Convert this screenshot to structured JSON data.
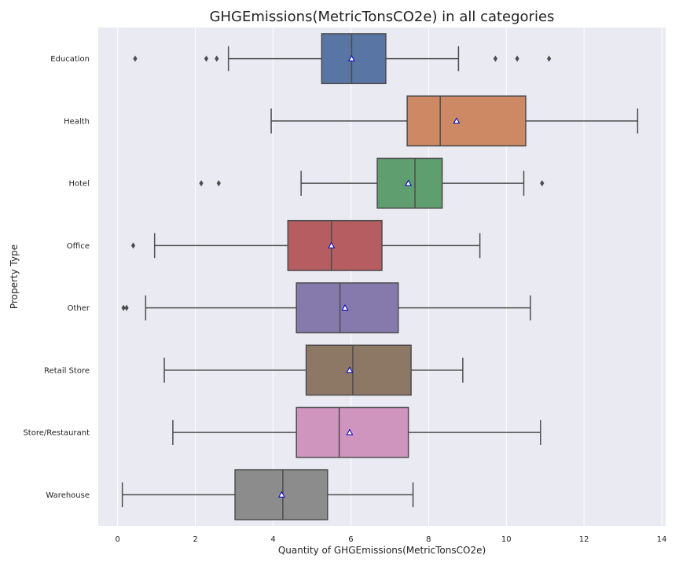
{
  "chart_data": {
    "type": "boxplot",
    "orientation": "horizontal",
    "title": "GHGEmissions(MetricTonsCO2e) in all categories",
    "xlabel": "Quantity of GHGEmissions(MetricTonsCO2e)",
    "ylabel": "Property Type",
    "xlim": [
      -0.5,
      14.1
    ],
    "xticks": [
      0,
      2,
      4,
      6,
      8,
      10,
      12,
      14
    ],
    "grid": true,
    "show_means": true,
    "colors": {
      "background": "#eaeaf2",
      "grid": "#ffffff",
      "line": "#4d4d4d",
      "mean_marker_fill": "#ffffff",
      "mean_marker_edge": "#0000cc"
    },
    "categories": [
      "Education",
      "Health",
      "Hotel",
      "Office",
      "Other",
      "Retail Store",
      "Store/Restaurant",
      "Warehouse"
    ],
    "boxes": [
      {
        "category": "Education",
        "color": "#5875a4",
        "whisker_low": 2.85,
        "q1": 5.25,
        "median": 6.02,
        "q3": 6.9,
        "whisker_high": 8.77,
        "mean": 6.02,
        "outliers": [
          0.45,
          2.28,
          2.55,
          9.72,
          10.28,
          11.1
        ]
      },
      {
        "category": "Health",
        "color": "#cc8963",
        "whisker_low": 3.95,
        "q1": 7.45,
        "median": 8.3,
        "q3": 10.5,
        "whisker_high": 13.38,
        "mean": 8.72,
        "outliers": []
      },
      {
        "category": "Hotel",
        "color": "#5f9e6e",
        "whisker_low": 4.72,
        "q1": 6.68,
        "median": 7.65,
        "q3": 8.35,
        "whisker_high": 10.45,
        "mean": 7.48,
        "outliers": [
          2.15,
          2.6,
          10.92
        ]
      },
      {
        "category": "Office",
        "color": "#b55d60",
        "whisker_low": 0.95,
        "q1": 4.38,
        "median": 5.5,
        "q3": 6.8,
        "whisker_high": 9.32,
        "mean": 5.5,
        "outliers": [
          0.4
        ]
      },
      {
        "category": "Other",
        "color": "#857aab",
        "whisker_low": 0.72,
        "q1": 4.6,
        "median": 5.72,
        "q3": 7.22,
        "whisker_high": 10.62,
        "mean": 5.85,
        "outliers": [
          0.15,
          0.23
        ]
      },
      {
        "category": "Retail Store",
        "color": "#8d7866",
        "whisker_low": 1.2,
        "q1": 4.85,
        "median": 6.05,
        "q3": 7.55,
        "whisker_high": 8.88,
        "mean": 5.97,
        "outliers": []
      },
      {
        "category": "Store/Restaurant",
        "color": "#d095bf",
        "whisker_low": 1.42,
        "q1": 4.6,
        "median": 5.7,
        "q3": 7.48,
        "whisker_high": 10.88,
        "mean": 5.97,
        "outliers": []
      },
      {
        "category": "Warehouse",
        "color": "#8c8c8c",
        "whisker_low": 0.12,
        "q1": 3.02,
        "median": 4.25,
        "q3": 5.4,
        "whisker_high": 7.6,
        "mean": 4.22,
        "outliers": []
      }
    ]
  }
}
